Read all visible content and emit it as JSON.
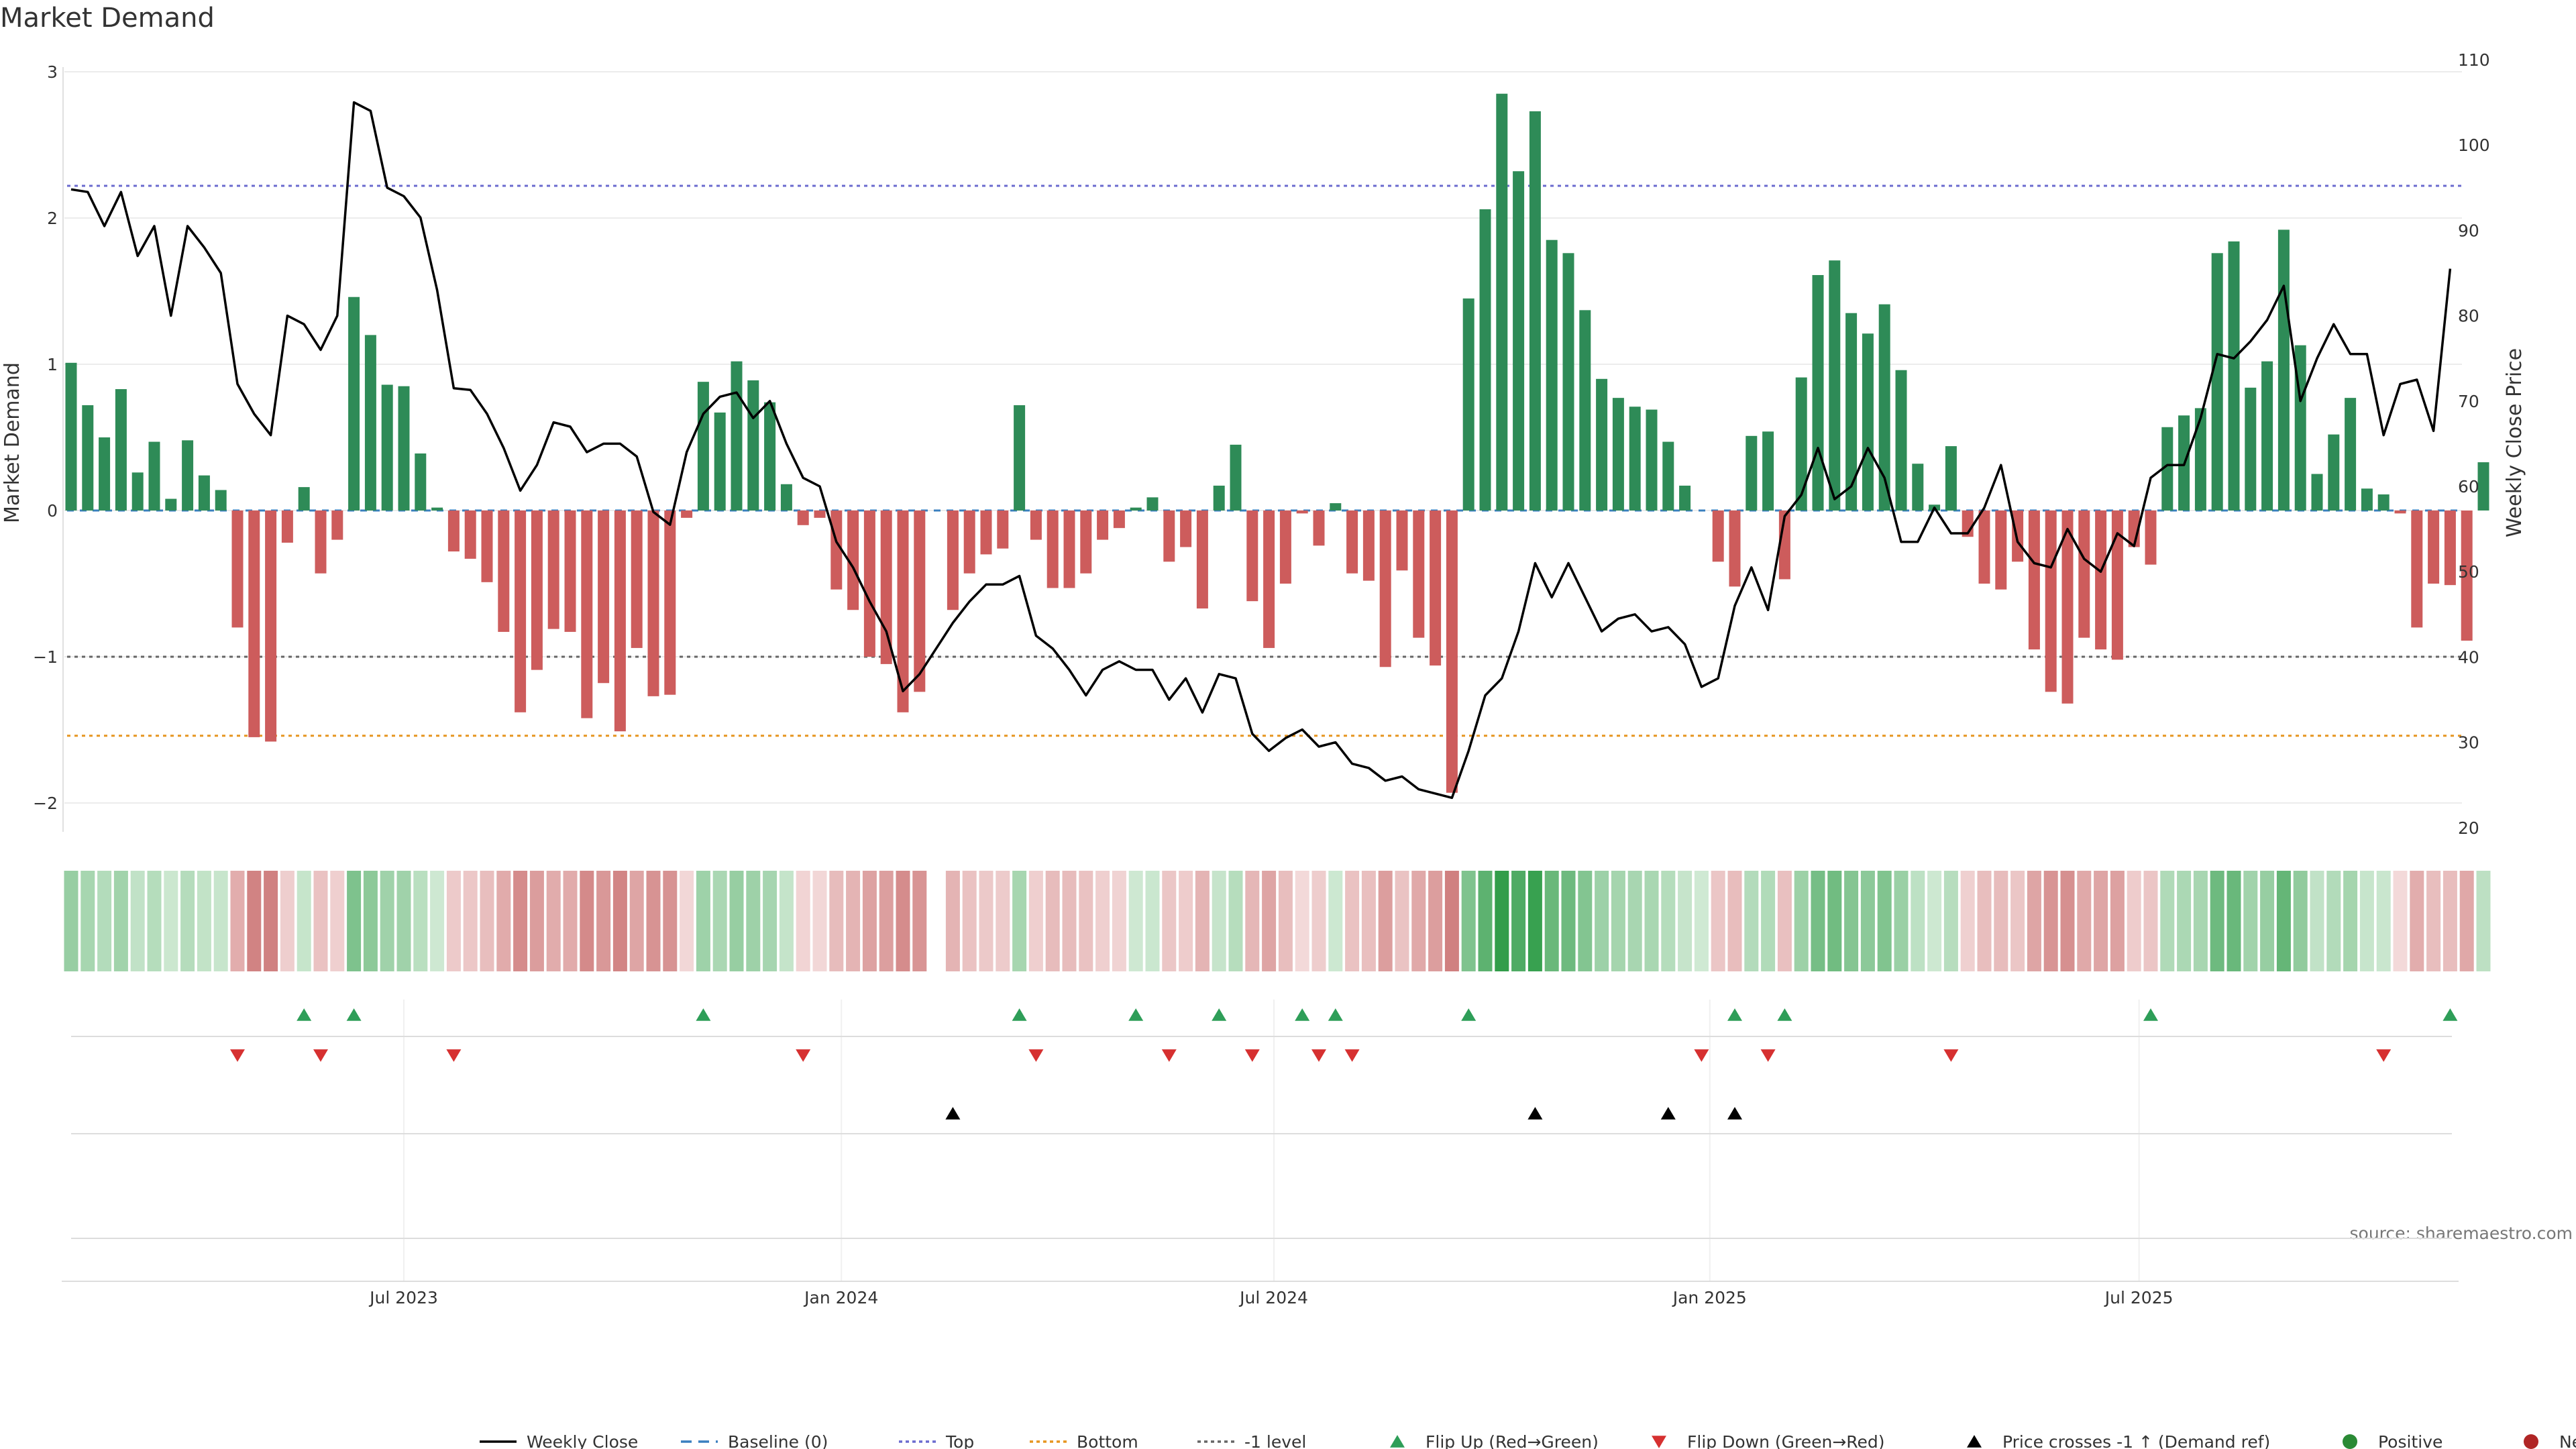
{
  "chart_data": {
    "type": "bar",
    "title": "Market Demand",
    "ylabel": "Market Demand",
    "y2label": "Weekly Close Price",
    "ylim": [
      -2.1,
      3.0
    ],
    "y2lim": [
      20,
      110
    ],
    "yticks": [
      {
        "v": 3,
        "label": "3"
      },
      {
        "v": 2,
        "label": "2"
      },
      {
        "v": 1,
        "label": "1"
      },
      {
        "v": 0,
        "label": "0"
      },
      {
        "v": -1,
        "label": "−1"
      },
      {
        "v": -2,
        "label": "−2"
      }
    ],
    "y2ticks": [
      110,
      100,
      90,
      80,
      70,
      60,
      50,
      40,
      30,
      20
    ],
    "xticks": [
      {
        "i": 20,
        "label": "Jul 2023"
      },
      {
        "i": 46.3,
        "label": "Jan 2024"
      },
      {
        "i": 72.3,
        "label": "Jul 2024"
      },
      {
        "i": 98.5,
        "label": "Jan 2025"
      },
      {
        "i": 124.3,
        "label": "Jul 2025"
      }
    ],
    "reference_lines": [
      {
        "name": "Top",
        "value": 2.22,
        "color": "#6b6bcf",
        "dash": "5,6"
      },
      {
        "name": "-1 level",
        "value": -1.0,
        "color": "#666666",
        "dash": "5,6"
      },
      {
        "name": "Bottom",
        "value": -1.54,
        "color": "#e69520",
        "dash": "5,6"
      }
    ],
    "baseline": 0,
    "series": [
      {
        "name": "Market Demand",
        "kind": "bar",
        "values": [
          1.01,
          0.72,
          0.5,
          0.83,
          0.26,
          0.47,
          0.08,
          0.48,
          0.24,
          0.14,
          -0.8,
          -1.55,
          -1.58,
          -0.22,
          0.16,
          -0.43,
          -0.2,
          1.46,
          1.2,
          0.86,
          0.85,
          0.39,
          0.02,
          -0.28,
          -0.33,
          -0.49,
          -0.83,
          -1.38,
          -1.09,
          -0.81,
          -0.83,
          -1.42,
          -1.18,
          -1.51,
          -0.94,
          -1.27,
          -1.26,
          -0.05,
          0.88,
          0.67,
          1.02,
          0.89,
          0.74,
          0.18,
          -0.1,
          -0.05,
          -0.54,
          -0.68,
          -1.0,
          -1.05,
          -1.38,
          -1.24,
          0.0,
          -0.68,
          -0.43,
          -0.3,
          -0.26,
          0.72,
          -0.2,
          -0.53,
          -0.53,
          -0.43,
          -0.2,
          -0.12,
          0.02,
          0.09,
          -0.35,
          -0.25,
          -0.67,
          0.17,
          0.45,
          -0.62,
          -0.94,
          -0.5,
          -0.02,
          -0.24,
          0.05,
          -0.43,
          -0.48,
          -1.07,
          -0.41,
          -0.87,
          -1.06,
          -1.93,
          1.45,
          2.06,
          2.85,
          2.32,
          2.73,
          1.85,
          1.76,
          1.37,
          0.9,
          0.77,
          0.71,
          0.69,
          0.47,
          0.17,
          0.0,
          -0.35,
          -0.52,
          0.51,
          0.54,
          -0.47,
          0.91,
          1.61,
          1.71,
          1.35,
          1.21,
          1.41,
          0.96,
          0.32,
          0.04,
          0.44,
          -0.18,
          -0.5,
          -0.54,
          -0.35,
          -0.95,
          -1.24,
          -1.32,
          -0.87,
          -0.95,
          -1.02,
          -0.25,
          -0.37,
          0.57,
          0.65,
          0.7,
          1.76,
          1.84,
          0.84,
          1.02,
          1.92,
          1.13,
          0.25,
          0.52,
          0.77,
          0.15,
          0.11,
          -0.02,
          -0.8,
          -0.5,
          -0.51,
          -0.89,
          0.33
        ]
      },
      {
        "name": "Weekly Close",
        "kind": "line",
        "axis": "right",
        "values": [
          94.8,
          94.5,
          90.5,
          94.5,
          87.0,
          90.5,
          80.0,
          90.5,
          88.0,
          85.0,
          72.0,
          68.5,
          66.0,
          80.0,
          79.0,
          76.0,
          80.0,
          105.0,
          104.0,
          95.0,
          94.0,
          91.5,
          83.0,
          71.5,
          71.3,
          68.5,
          64.5,
          59.5,
          62.5,
          67.5,
          67.0,
          64.0,
          65.0,
          65.0,
          63.5,
          57.0,
          55.5,
          64.0,
          68.5,
          70.5,
          71.0,
          68.0,
          70.0,
          65.0,
          61.0,
          60.0,
          53.5,
          50.5,
          46.5,
          43.0,
          36.0,
          38.0,
          41.0,
          44.0,
          46.5,
          48.5,
          48.5,
          49.5,
          42.5,
          41.0,
          38.5,
          35.5,
          38.5,
          39.5,
          38.5,
          38.5,
          35.0,
          37.5,
          33.5,
          38.0,
          37.5,
          31.0,
          29.0,
          30.5,
          31.5,
          29.5,
          30.0,
          27.5,
          27.0,
          25.5,
          26.0,
          24.5,
          24.0,
          23.5,
          29.0,
          35.5,
          37.5,
          43.0,
          51.0,
          47.0,
          51.0,
          47.0,
          43.0,
          44.5,
          45.0,
          43.0,
          43.5,
          41.5,
          36.5,
          37.5,
          46.0,
          50.5,
          45.5,
          56.5,
          59.0,
          64.5,
          58.5,
          60.0,
          64.5,
          61.0,
          53.5,
          53.5,
          57.5,
          54.5,
          54.5,
          57.5,
          62.5,
          53.5,
          51.0,
          50.5,
          55.0,
          51.5,
          50.0,
          54.5,
          53.0,
          61.0,
          62.5,
          62.5,
          68.0,
          75.5,
          75.0,
          77.0,
          79.5,
          83.5,
          70.0,
          75.0,
          79.0,
          75.5,
          75.5,
          66.0,
          72.0,
          72.5,
          66.5,
          85.5
        ]
      }
    ],
    "heat_strip": {
      "nulls": [
        52
      ]
    },
    "markers": {
      "flip_up": [
        14,
        17,
        38,
        57,
        64,
        69,
        74,
        76,
        84,
        100,
        103,
        125,
        143
      ],
      "flip_down": [
        10,
        15,
        23,
        44,
        58,
        66,
        71,
        75,
        77,
        98,
        102,
        113,
        139
      ],
      "price_cross": [
        53,
        88,
        96,
        100
      ]
    },
    "legend": [
      {
        "label": "Weekly Close",
        "symbol": "line",
        "color": "#000000"
      },
      {
        "label": "Baseline (0)",
        "symbol": "dash",
        "color": "#3a7fbf"
      },
      {
        "label": "Top",
        "symbol": "dot",
        "color": "#6b6bcf"
      },
      {
        "label": "Bottom",
        "symbol": "dot",
        "color": "#e69520"
      },
      {
        "label": "-1 level",
        "symbol": "dot",
        "color": "#666666"
      },
      {
        "label": "Flip Up (Red→Green)",
        "symbol": "tri-up",
        "color": "#2e9e58"
      },
      {
        "label": "Flip Down (Green→Red)",
        "symbol": "tri-down",
        "color": "#d63030"
      },
      {
        "label": "Price crosses -1 ↑ (Demand ref)",
        "symbol": "tri-up",
        "color": "#000000"
      },
      {
        "label": "Positive",
        "symbol": "circle",
        "color": "#2a8a35"
      },
      {
        "label": "Negative",
        "symbol": "circle",
        "color": "#b02525"
      }
    ],
    "source": "source: sharemaestro.com",
    "colors": {
      "positive": "#2e8b57",
      "negative": "#cd5c5c",
      "line": "#000000"
    }
  }
}
